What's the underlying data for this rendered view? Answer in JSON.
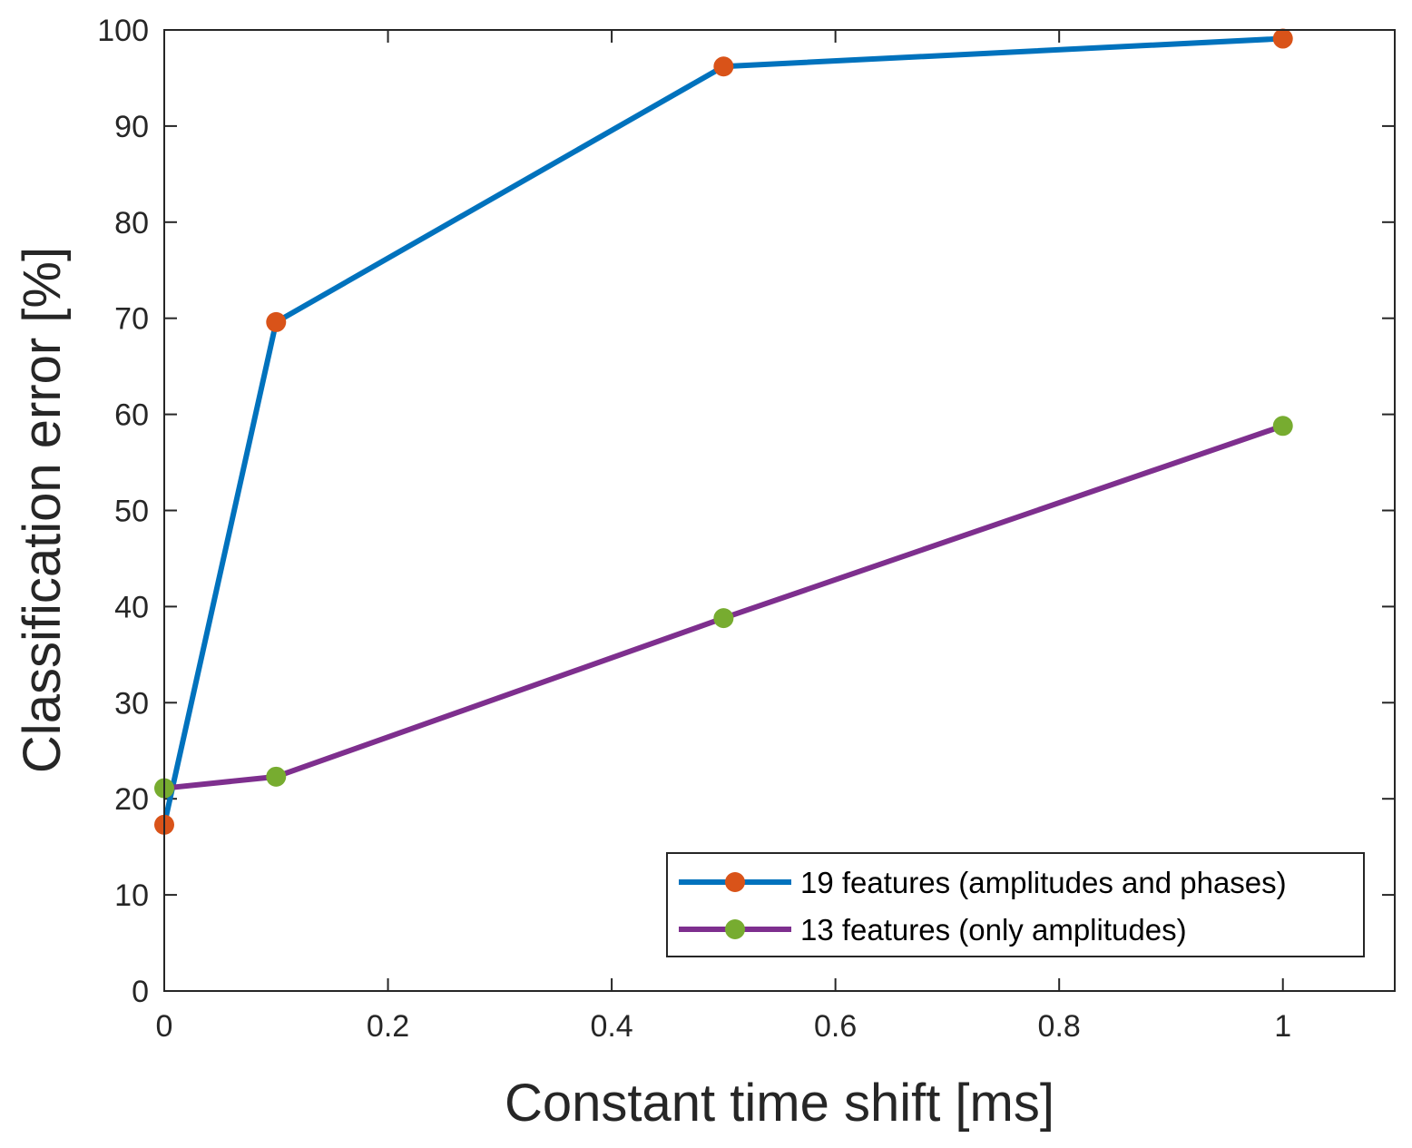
{
  "chart_data": {
    "type": "line",
    "title": "",
    "xlabel": "Constant time shift [ms]",
    "ylabel": "Classification error [%]",
    "xlim": [
      0,
      1.1
    ],
    "ylim": [
      0,
      100
    ],
    "xticks": [
      0,
      0.2,
      0.4,
      0.6,
      0.8,
      1
    ],
    "xtick_labels": [
      "0",
      "0.2",
      "0.4",
      "0.6",
      "0.8",
      "1"
    ],
    "yticks": [
      0,
      10,
      20,
      30,
      40,
      50,
      60,
      70,
      80,
      90,
      100
    ],
    "ytick_labels": [
      "0",
      "10",
      "20",
      "30",
      "40",
      "50",
      "60",
      "70",
      "80",
      "90",
      "100"
    ],
    "grid": false,
    "legend_position": "bottom-right",
    "series": [
      {
        "name": "19 features (amplitudes and phases)",
        "line_color": "#0072BD",
        "marker_color": "#D95319",
        "x": [
          0,
          0.1,
          0.5,
          1
        ],
        "y": [
          17.3,
          69.6,
          96.2,
          99.1
        ]
      },
      {
        "name": "13 features (only amplitudes)",
        "line_color": "#7E2F8E",
        "marker_color": "#77AC30",
        "x": [
          0,
          0.1,
          0.5,
          1
        ],
        "y": [
          21.1,
          22.3,
          38.8,
          58.8
        ]
      }
    ]
  }
}
